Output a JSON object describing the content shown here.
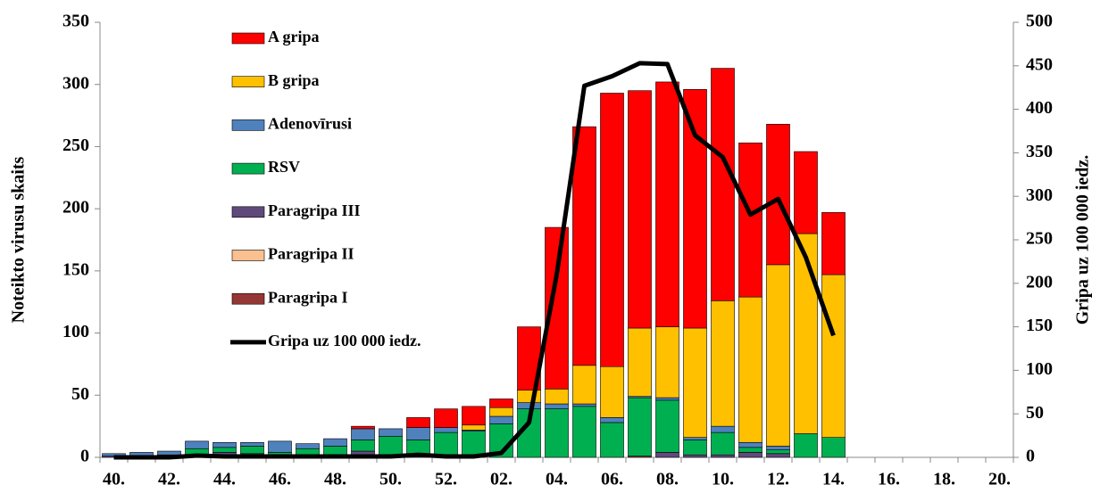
{
  "chart_data": {
    "type": "bar",
    "categories": [
      "40.",
      null,
      "42.",
      null,
      "44.",
      null,
      "46.",
      null,
      "48.",
      null,
      "50.",
      null,
      "52.",
      null,
      "02.",
      null,
      "04.",
      null,
      "06.",
      null,
      "08.",
      null,
      "10.",
      null,
      "12.",
      null,
      "14.",
      null,
      "16.",
      null,
      "18.",
      null,
      "20."
    ],
    "series": [
      {
        "name": "A gripa",
        "color": "#ff0000",
        "values": [
          0,
          0,
          0,
          0,
          0,
          0,
          0,
          0,
          0,
          2,
          0,
          8,
          15,
          15,
          7,
          51,
          130,
          192,
          220,
          191,
          197,
          192,
          187,
          124,
          113,
          66,
          50,
          null,
          null,
          null,
          null,
          null,
          null
        ]
      },
      {
        "name": "B gripa",
        "color": "#ffc000",
        "values": [
          0,
          0,
          0,
          0,
          0,
          0,
          0,
          0,
          0,
          0,
          0,
          0,
          0,
          4,
          7,
          10,
          12,
          31,
          41,
          55,
          57,
          88,
          101,
          117,
          146,
          161,
          131,
          null,
          null,
          null,
          null,
          null,
          null
        ]
      },
      {
        "name": "Adenovīrusi",
        "color": "#4f81bd",
        "values": [
          2,
          3,
          3,
          6,
          4,
          3,
          9,
          4,
          6,
          9,
          6,
          10,
          4,
          1,
          6,
          5,
          4,
          2,
          4,
          1,
          2,
          2,
          5,
          4,
          3,
          0,
          0,
          null,
          null,
          null,
          null,
          null,
          null
        ]
      },
      {
        "name": "RSV",
        "color": "#00b050",
        "values": [
          0,
          1,
          0,
          5,
          4,
          6,
          2,
          5,
          8,
          9,
          16,
          14,
          20,
          21,
          27,
          39,
          39,
          41,
          28,
          47,
          42,
          12,
          18,
          4,
          3,
          19,
          16,
          null,
          null,
          null,
          null,
          null,
          null
        ]
      },
      {
        "name": "Paragripa III",
        "color": "#604a7b",
        "values": [
          1,
          0,
          2,
          2,
          4,
          3,
          2,
          2,
          1,
          5,
          1,
          0,
          0,
          0,
          0,
          0,
          0,
          0,
          0,
          0,
          4,
          2,
          2,
          4,
          3,
          0,
          0,
          null,
          null,
          null,
          null,
          null,
          null
        ]
      },
      {
        "name": "Paragripa II",
        "color": "#fac090",
        "values": [
          0,
          0,
          0,
          0,
          0,
          0,
          0,
          0,
          0,
          0,
          0,
          0,
          0,
          0,
          0,
          0,
          0,
          0,
          0,
          0,
          0,
          0,
          0,
          0,
          0,
          0,
          0,
          null,
          null,
          null,
          null,
          null,
          null
        ]
      },
      {
        "name": "Paragripa I",
        "color": "#953735",
        "values": [
          0,
          0,
          0,
          0,
          0,
          0,
          0,
          0,
          0,
          0,
          0,
          0,
          0,
          0,
          0,
          0,
          0,
          0,
          0,
          1,
          0,
          0,
          0,
          0,
          0,
          0,
          0,
          null,
          null,
          null,
          null,
          null,
          null
        ]
      },
      {
        "name": "Gripa uz 100 000 iedz.",
        "color": "#000000",
        "type": "line",
        "axis": "y2",
        "values": [
          0,
          0,
          0,
          2,
          1,
          1,
          1,
          1,
          1,
          1,
          1,
          3,
          1,
          1,
          5,
          40,
          210,
          427,
          438,
          453,
          452,
          370,
          345,
          279,
          297,
          230,
          140,
          null,
          null,
          null,
          null,
          null,
          null
        ]
      }
    ],
    "y_label": "Noteikto virusu skaits",
    "y2_label": "Gripa uz 100 000 iedz.",
    "ylim": [
      0,
      350
    ],
    "yticks": [
      0,
      50,
      100,
      150,
      200,
      250,
      300,
      350
    ],
    "y2lim": [
      0,
      500
    ],
    "y2ticks": [
      0,
      50,
      100,
      150,
      200,
      250,
      300,
      350,
      400,
      450,
      500
    ],
    "stacked": true,
    "grid": false
  }
}
